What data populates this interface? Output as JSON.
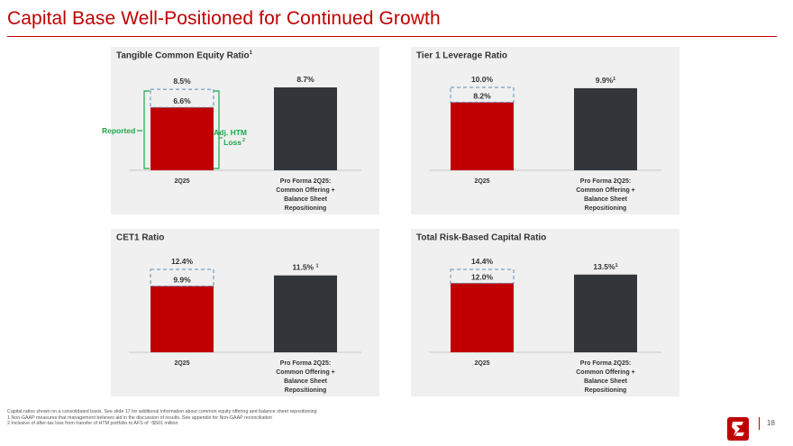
{
  "title": "Capital Base Well-Positioned for Continued Growth",
  "colors": {
    "brand_red": "#c00000",
    "bar_dark": "#32363a",
    "bracket_green": "#1aaa4a",
    "dash_blue": "#5b8ab5"
  },
  "annotations": {
    "reported": "Reported",
    "adj_htm_line1": "Adj. HTM",
    "adj_htm_line2": "Loss",
    "adj_htm_sup": "2"
  },
  "panels": [
    {
      "title": "Tangible Common Equity Ratio",
      "title_sup": "1"
    },
    {
      "title": "Tier 1 Leverage Ratio",
      "title_sup": ""
    },
    {
      "title": "CET1 Ratio",
      "title_sup": ""
    },
    {
      "title": "Total Risk-Based Capital Ratio",
      "title_sup": ""
    }
  ],
  "chart_data": [
    {
      "type": "bar",
      "title": "Tangible Common Equity Ratio",
      "categories": [
        "2Q25",
        "Pro Forma 2Q25: Common Offering + Balance Sheet Repositioning"
      ],
      "series": [
        {
          "name": "Reported",
          "values": [
            6.6,
            8.7
          ],
          "labels": [
            "6.6%",
            "8.7%"
          ],
          "label_sups": [
            "",
            ""
          ]
        },
        {
          "name": "Adj. HTM Loss",
          "values": [
            8.5,
            null
          ],
          "labels": [
            "8.5%",
            ""
          ]
        }
      ]
    },
    {
      "type": "bar",
      "title": "Tier 1 Leverage Ratio",
      "categories": [
        "2Q25",
        "Pro Forma 2Q25: Common Offering + Balance Sheet Repositioning"
      ],
      "series": [
        {
          "values": [
            8.2,
            9.9
          ],
          "labels": [
            "8.2%",
            "9.9%"
          ],
          "label_sups": [
            "",
            "1"
          ]
        },
        {
          "values": [
            10.0,
            null
          ],
          "labels": [
            "10.0%",
            ""
          ]
        }
      ]
    },
    {
      "type": "bar",
      "title": "CET1 Ratio",
      "categories": [
        "2Q25",
        "Pro Forma 2Q25: Common Offering + Balance Sheet Repositioning"
      ],
      "series": [
        {
          "values": [
            9.9,
            11.5
          ],
          "labels": [
            "9.9%",
            "11.5% "
          ],
          "label_sups": [
            "",
            "1"
          ]
        },
        {
          "values": [
            12.4,
            null
          ],
          "labels": [
            "12.4%",
            ""
          ]
        }
      ]
    },
    {
      "type": "bar",
      "title": "Total Risk-Based Capital Ratio",
      "categories": [
        "2Q25",
        "Pro Forma 2Q25: Common Offering + Balance Sheet Repositioning"
      ],
      "series": [
        {
          "values": [
            12.0,
            13.5
          ],
          "labels": [
            "12.0%",
            "13.5%"
          ],
          "label_sups": [
            "",
            "1"
          ]
        },
        {
          "values": [
            14.4,
            null
          ],
          "labels": [
            "14.4%",
            ""
          ]
        }
      ]
    }
  ],
  "category_label_lines": [
    "Pro Forma 2Q25:",
    "Common Offering +",
    "Balance Sheet",
    "Repositioning"
  ],
  "footnotes": [
    "Capital ratios shown on a consolidated basis. See slide 17 for additional information about common equity offering and balance sheet repositioning",
    "1  Non-GAAP measures that management believes aid in the discussion of results. See appendix for Non-GAAP reconciliation",
    "2  Inclusive of after-tax loss from transfer of HTM portfolio to AFS of ~$501 million"
  ],
  "page_number": "18",
  "logo_icon": "company-logo-icon"
}
